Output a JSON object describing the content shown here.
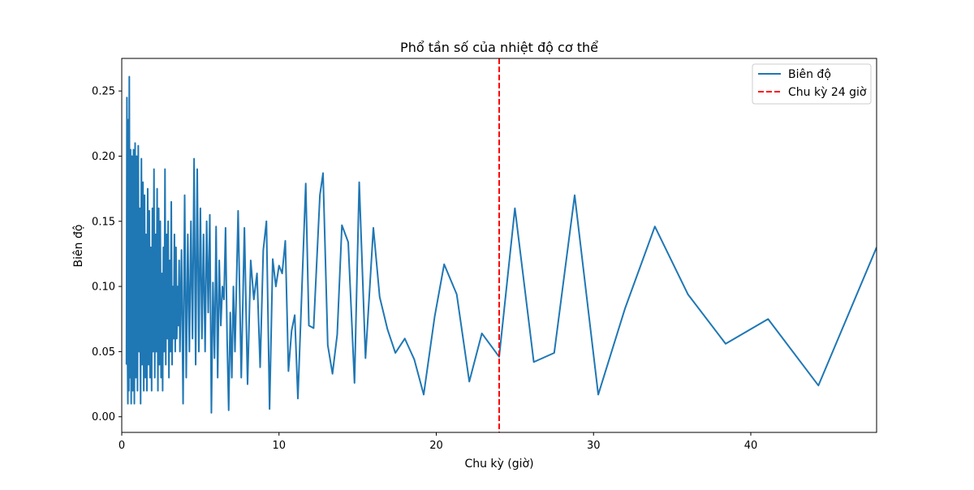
{
  "chart_data": {
    "type": "line",
    "title": "Phổ tần số của nhiệt độ cơ thể",
    "xlabel": "Chu kỳ (giờ)",
    "ylabel": "Biên độ",
    "xlim": [
      0,
      48
    ],
    "ylim": [
      -0.012,
      0.275
    ],
    "x_ticks": [
      0,
      10,
      20,
      30,
      40
    ],
    "x_tick_labels": [
      "0",
      "10",
      "20",
      "30",
      "40"
    ],
    "y_ticks": [
      0.0,
      0.05,
      0.1,
      0.15,
      0.2,
      0.25
    ],
    "y_tick_labels": [
      "0.00",
      "0.05",
      "0.10",
      "0.15",
      "0.20",
      "0.25"
    ],
    "grid": false,
    "legend": {
      "placement": "top-right",
      "entries": [
        {
          "label": "Biên độ",
          "style": "solid",
          "color": "#1f77b4"
        },
        {
          "label": "Chu kỳ 24 giờ",
          "style": "dashed",
          "color": "#d62728"
        }
      ]
    },
    "reference_line": {
      "x": 24,
      "label": "Chu kỳ 24 giờ",
      "color": "#ff0000",
      "style": "dashed"
    },
    "series": [
      {
        "name": "Biên độ",
        "color": "#1f77b4",
        "points": [
          [
            0.3,
            0.04
          ],
          [
            0.33,
            0.245
          ],
          [
            0.36,
            0.06
          ],
          [
            0.39,
            0.01
          ],
          [
            0.42,
            0.228
          ],
          [
            0.45,
            0.02
          ],
          [
            0.48,
            0.261
          ],
          [
            0.52,
            0.03
          ],
          [
            0.56,
            0.205
          ],
          [
            0.6,
            0.01
          ],
          [
            0.65,
            0.2
          ],
          [
            0.7,
            0.02
          ],
          [
            0.75,
            0.205
          ],
          [
            0.8,
            0.01
          ],
          [
            0.85,
            0.21
          ],
          [
            0.9,
            0.03
          ],
          [
            0.95,
            0.2
          ],
          [
            1.0,
            0.02
          ],
          [
            1.05,
            0.208
          ],
          [
            1.1,
            0.05
          ],
          [
            1.15,
            0.16
          ],
          [
            1.2,
            0.01
          ],
          [
            1.25,
            0.198
          ],
          [
            1.3,
            0.04
          ],
          [
            1.35,
            0.18
          ],
          [
            1.4,
            0.02
          ],
          [
            1.45,
            0.17
          ],
          [
            1.5,
            0.03
          ],
          [
            1.55,
            0.14
          ],
          [
            1.6,
            0.02
          ],
          [
            1.65,
            0.175
          ],
          [
            1.7,
            0.04
          ],
          [
            1.75,
            0.158
          ],
          [
            1.8,
            0.03
          ],
          [
            1.85,
            0.13
          ],
          [
            1.9,
            0.02
          ],
          [
            1.95,
            0.16
          ],
          [
            2.0,
            0.05
          ],
          [
            2.05,
            0.19
          ],
          [
            2.1,
            0.03
          ],
          [
            2.15,
            0.14
          ],
          [
            2.2,
            0.05
          ],
          [
            2.25,
            0.175
          ],
          [
            2.3,
            0.02
          ],
          [
            2.35,
            0.16
          ],
          [
            2.4,
            0.04
          ],
          [
            2.45,
            0.15
          ],
          [
            2.5,
            0.03
          ],
          [
            2.55,
            0.11
          ],
          [
            2.6,
            0.02
          ],
          [
            2.65,
            0.13
          ],
          [
            2.7,
            0.05
          ],
          [
            2.75,
            0.19
          ],
          [
            2.8,
            0.04
          ],
          [
            2.85,
            0.14
          ],
          [
            2.9,
            0.06
          ],
          [
            2.95,
            0.15
          ],
          [
            3.0,
            0.03
          ],
          [
            3.05,
            0.12
          ],
          [
            3.1,
            0.05
          ],
          [
            3.15,
            0.165
          ],
          [
            3.2,
            0.04
          ],
          [
            3.25,
            0.1
          ],
          [
            3.3,
            0.06
          ],
          [
            3.35,
            0.14
          ],
          [
            3.4,
            0.05
          ],
          [
            3.45,
            0.13
          ],
          [
            3.5,
            0.06
          ],
          [
            3.55,
            0.1
          ],
          [
            3.6,
            0.07
          ],
          [
            3.65,
            0.12
          ],
          [
            3.7,
            0.05
          ],
          [
            3.8,
            0.128
          ],
          [
            3.9,
            0.01
          ],
          [
            4.0,
            0.17
          ],
          [
            4.1,
            0.03
          ],
          [
            4.2,
            0.14
          ],
          [
            4.3,
            0.05
          ],
          [
            4.4,
            0.15
          ],
          [
            4.5,
            0.06
          ],
          [
            4.6,
            0.198
          ],
          [
            4.7,
            0.04
          ],
          [
            4.8,
            0.19
          ],
          [
            4.9,
            0.05
          ],
          [
            5.0,
            0.16
          ],
          [
            5.1,
            0.06
          ],
          [
            5.2,
            0.14
          ],
          [
            5.3,
            0.05
          ],
          [
            5.4,
            0.15
          ],
          [
            5.5,
            0.08
          ],
          [
            5.6,
            0.155
          ],
          [
            5.7,
            0.003
          ],
          [
            5.8,
            0.103
          ],
          [
            5.9,
            0.045
          ],
          [
            6.0,
            0.146
          ],
          [
            6.1,
            0.03
          ],
          [
            6.2,
            0.12
          ],
          [
            6.3,
            0.07
          ],
          [
            6.4,
            0.1
          ],
          [
            6.5,
            0.09
          ],
          [
            6.6,
            0.145
          ],
          [
            6.7,
            0.06
          ],
          [
            6.8,
            0.005
          ],
          [
            6.9,
            0.08
          ],
          [
            7.0,
            0.03
          ],
          [
            7.1,
            0.1
          ],
          [
            7.2,
            0.05
          ],
          [
            7.4,
            0.158
          ],
          [
            7.6,
            0.03
          ],
          [
            7.8,
            0.145
          ],
          [
            8.0,
            0.025
          ],
          [
            8.2,
            0.12
          ],
          [
            8.4,
            0.09
          ],
          [
            8.6,
            0.11
          ],
          [
            8.8,
            0.038
          ],
          [
            9.0,
            0.128
          ],
          [
            9.2,
            0.15
          ],
          [
            9.4,
            0.006
          ],
          [
            9.6,
            0.121
          ],
          [
            9.8,
            0.1
          ],
          [
            10.0,
            0.116
          ],
          [
            10.2,
            0.11
          ],
          [
            10.4,
            0.135
          ],
          [
            10.6,
            0.035
          ],
          [
            10.8,
            0.066
          ],
          [
            11.0,
            0.078
          ],
          [
            11.2,
            0.014
          ],
          [
            11.7,
            0.179
          ],
          [
            11.9,
            0.07
          ],
          [
            12.2,
            0.068
          ],
          [
            12.6,
            0.17
          ],
          [
            12.8,
            0.187
          ],
          [
            13.1,
            0.055
          ],
          [
            13.4,
            0.033
          ],
          [
            13.7,
            0.063
          ],
          [
            14.0,
            0.147
          ],
          [
            14.4,
            0.134
          ],
          [
            14.8,
            0.026
          ],
          [
            15.1,
            0.18
          ],
          [
            15.5,
            0.045
          ],
          [
            16.0,
            0.145
          ],
          [
            16.4,
            0.092
          ],
          [
            16.9,
            0.067
          ],
          [
            17.4,
            0.049
          ],
          [
            18.0,
            0.06
          ],
          [
            18.6,
            0.044
          ],
          [
            19.2,
            0.017
          ],
          [
            19.9,
            0.077
          ],
          [
            20.5,
            0.117
          ],
          [
            21.3,
            0.094
          ],
          [
            22.1,
            0.027
          ],
          [
            22.9,
            0.064
          ],
          [
            24.0,
            0.046
          ],
          [
            25.0,
            0.16
          ],
          [
            26.2,
            0.042
          ],
          [
            27.5,
            0.049
          ],
          [
            28.8,
            0.17
          ],
          [
            30.3,
            0.017
          ],
          [
            32.0,
            0.083
          ],
          [
            33.9,
            0.146
          ],
          [
            36.0,
            0.094
          ],
          [
            38.4,
            0.056
          ],
          [
            41.1,
            0.075
          ],
          [
            44.3,
            0.024
          ],
          [
            48.0,
            0.13
          ]
        ]
      }
    ]
  }
}
